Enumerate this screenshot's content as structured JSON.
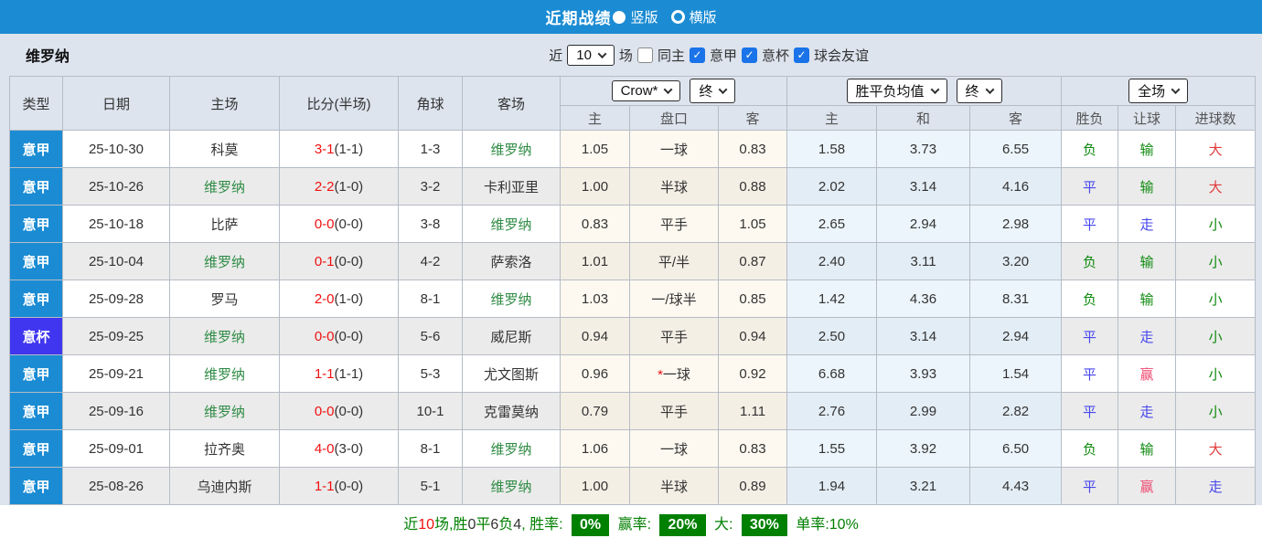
{
  "colors": {
    "topbar": "#1b8cd3",
    "serie_a_badge": "#1b8cd3",
    "coppa_badge": "#4136f0",
    "focus_team_green": "#2e8b44",
    "result_green": "#0f8a0f",
    "result_blue": "#4747ee",
    "result_red": "#e23b3b",
    "result_pink": "#ef4a70",
    "score_red": "#f01010",
    "rate_badge_green": "#008000"
  },
  "topbar": {
    "title": "近期战绩",
    "radio_vertical": "竖版",
    "radio_horizontal": "横版"
  },
  "team_row": {
    "team": "维罗纳",
    "near_label": "近",
    "near_value": "10",
    "matches_label": "场",
    "same_home_label": "同主",
    "filters": [
      {
        "label": "意甲",
        "checked": true
      },
      {
        "label": "意杯",
        "checked": true
      },
      {
        "label": "球会友谊",
        "checked": true
      }
    ]
  },
  "header": {
    "col_type": "类型",
    "col_date": "日期",
    "col_home": "主场",
    "col_score": "比分(半场)",
    "col_corner": "角球",
    "col_away": "客场",
    "select_company": "Crow*",
    "select_final1": "终",
    "select_avg": "胜平负均值",
    "select_final2": "终",
    "select_fulltime": "全场",
    "sub_ah_home": "主",
    "sub_ah_line": "盘口",
    "sub_ah_away": "客",
    "sub_o_home": "主",
    "sub_o_draw": "和",
    "sub_o_away": "客",
    "sub_res_wdl": "胜负",
    "sub_res_ah": "让球",
    "sub_res_goals": "进球数"
  },
  "rows": [
    {
      "league": "意甲",
      "league_class": "serie-a",
      "date": "25-10-30",
      "home": "科莫",
      "home_class": "",
      "score": "3-1",
      "half": "(1-1)",
      "corner": "1-3",
      "away": "维罗纳",
      "away_class": "team-green",
      "ah_home": "1.05",
      "line_star": false,
      "line": "一球",
      "ah_away": "0.83",
      "o1": "1.58",
      "ox": "3.73",
      "o2": "6.55",
      "wdl": "负",
      "wdl_class": "t-green",
      "ah_res": "输",
      "ah_res_class": "t-green",
      "ou": "大",
      "ou_class": "t-red"
    },
    {
      "league": "意甲",
      "league_class": "serie-a",
      "date": "25-10-26",
      "home": "维罗纳",
      "home_class": "team-green",
      "score": "2-2",
      "half": "(1-0)",
      "corner": "3-2",
      "away": "卡利亚里",
      "away_class": "",
      "ah_home": "1.00",
      "line_star": false,
      "line": "半球",
      "ah_away": "0.88",
      "o1": "2.02",
      "ox": "3.14",
      "o2": "4.16",
      "wdl": "平",
      "wdl_class": "t-blue",
      "ah_res": "输",
      "ah_res_class": "t-green",
      "ou": "大",
      "ou_class": "t-red"
    },
    {
      "league": "意甲",
      "league_class": "serie-a",
      "date": "25-10-18",
      "home": "比萨",
      "home_class": "",
      "score": "0-0",
      "half": "(0-0)",
      "corner": "3-8",
      "away": "维罗纳",
      "away_class": "team-green",
      "ah_home": "0.83",
      "line_star": false,
      "line": "平手",
      "ah_away": "1.05",
      "o1": "2.65",
      "ox": "2.94",
      "o2": "2.98",
      "wdl": "平",
      "wdl_class": "t-blue",
      "ah_res": "走",
      "ah_res_class": "t-blue",
      "ou": "小",
      "ou_class": "t-green"
    },
    {
      "league": "意甲",
      "league_class": "serie-a",
      "date": "25-10-04",
      "home": "维罗纳",
      "home_class": "team-green",
      "score": "0-1",
      "half": "(0-0)",
      "corner": "4-2",
      "away": "萨索洛",
      "away_class": "",
      "ah_home": "1.01",
      "line_star": false,
      "line": "平/半",
      "ah_away": "0.87",
      "o1": "2.40",
      "ox": "3.11",
      "o2": "3.20",
      "wdl": "负",
      "wdl_class": "t-green",
      "ah_res": "输",
      "ah_res_class": "t-green",
      "ou": "小",
      "ou_class": "t-green"
    },
    {
      "league": "意甲",
      "league_class": "serie-a",
      "date": "25-09-28",
      "home": "罗马",
      "home_class": "",
      "score": "2-0",
      "half": "(1-0)",
      "corner": "8-1",
      "away": "维罗纳",
      "away_class": "team-green",
      "ah_home": "1.03",
      "line_star": false,
      "line": "一/球半",
      "ah_away": "0.85",
      "o1": "1.42",
      "ox": "4.36",
      "o2": "8.31",
      "wdl": "负",
      "wdl_class": "t-green",
      "ah_res": "输",
      "ah_res_class": "t-green",
      "ou": "小",
      "ou_class": "t-green"
    },
    {
      "league": "意杯",
      "league_class": "coppa",
      "date": "25-09-25",
      "home": "维罗纳",
      "home_class": "team-green",
      "score": "0-0",
      "half": "(0-0)",
      "corner": "5-6",
      "away": "威尼斯",
      "away_class": "",
      "ah_home": "0.94",
      "line_star": false,
      "line": "平手",
      "ah_away": "0.94",
      "o1": "2.50",
      "ox": "3.14",
      "o2": "2.94",
      "wdl": "平",
      "wdl_class": "t-blue",
      "ah_res": "走",
      "ah_res_class": "t-blue",
      "ou": "小",
      "ou_class": "t-green"
    },
    {
      "league": "意甲",
      "league_class": "serie-a",
      "date": "25-09-21",
      "home": "维罗纳",
      "home_class": "team-green",
      "score": "1-1",
      "half": "(1-1)",
      "corner": "5-3",
      "away": "尤文图斯",
      "away_class": "",
      "ah_home": "0.96",
      "line_star": true,
      "line": "一球",
      "ah_away": "0.92",
      "o1": "6.68",
      "ox": "3.93",
      "o2": "1.54",
      "wdl": "平",
      "wdl_class": "t-blue",
      "ah_res": "赢",
      "ah_res_class": "t-pink",
      "ou": "小",
      "ou_class": "t-green"
    },
    {
      "league": "意甲",
      "league_class": "serie-a",
      "date": "25-09-16",
      "home": "维罗纳",
      "home_class": "team-green",
      "score": "0-0",
      "half": "(0-0)",
      "corner": "10-1",
      "away": "克雷莫纳",
      "away_class": "",
      "ah_home": "0.79",
      "line_star": false,
      "line": "平手",
      "ah_away": "1.11",
      "o1": "2.76",
      "ox": "2.99",
      "o2": "2.82",
      "wdl": "平",
      "wdl_class": "t-blue",
      "ah_res": "走",
      "ah_res_class": "t-blue",
      "ou": "小",
      "ou_class": "t-green"
    },
    {
      "league": "意甲",
      "league_class": "serie-a",
      "date": "25-09-01",
      "home": "拉齐奥",
      "home_class": "",
      "score": "4-0",
      "half": "(3-0)",
      "corner": "8-1",
      "away": "维罗纳",
      "away_class": "team-green",
      "ah_home": "1.06",
      "line_star": false,
      "line": "一球",
      "ah_away": "0.83",
      "o1": "1.55",
      "ox": "3.92",
      "o2": "6.50",
      "wdl": "负",
      "wdl_class": "t-green",
      "ah_res": "输",
      "ah_res_class": "t-green",
      "ou": "大",
      "ou_class": "t-red"
    },
    {
      "league": "意甲",
      "league_class": "serie-a",
      "date": "25-08-26",
      "home": "乌迪内斯",
      "home_class": "",
      "score": "1-1",
      "half": "(0-0)",
      "corner": "5-1",
      "away": "维罗纳",
      "away_class": "team-green",
      "ah_home": "1.00",
      "line_star": false,
      "line": "半球",
      "ah_away": "0.89",
      "o1": "1.94",
      "ox": "3.21",
      "o2": "4.43",
      "wdl": "平",
      "wdl_class": "t-blue",
      "ah_res": "赢",
      "ah_res_class": "t-pink",
      "ou": "走",
      "ou_class": "t-blue"
    }
  ],
  "footer_parts": [
    {
      "t": "近",
      "c": "green"
    },
    {
      "t": "10",
      "c": "red"
    },
    {
      "t": "场,胜",
      "c": "green"
    },
    {
      "t": "0",
      "c": "dark"
    },
    {
      "t": "平",
      "c": "green"
    },
    {
      "t": "6",
      "c": "dark"
    },
    {
      "t": "负",
      "c": "green"
    },
    {
      "t": "4",
      "c": "dark"
    },
    {
      "t": ", 胜率: ",
      "c": "green"
    },
    {
      "t": "0%",
      "c": "badge"
    },
    {
      "t": " 赢率: ",
      "c": "green"
    },
    {
      "t": "20%",
      "c": "badge"
    },
    {
      "t": " 大: ",
      "c": "green"
    },
    {
      "t": "30%",
      "c": "badge"
    },
    {
      "t": " 单率:",
      "c": "green"
    },
    {
      "t": "10%",
      "c": "green"
    }
  ]
}
